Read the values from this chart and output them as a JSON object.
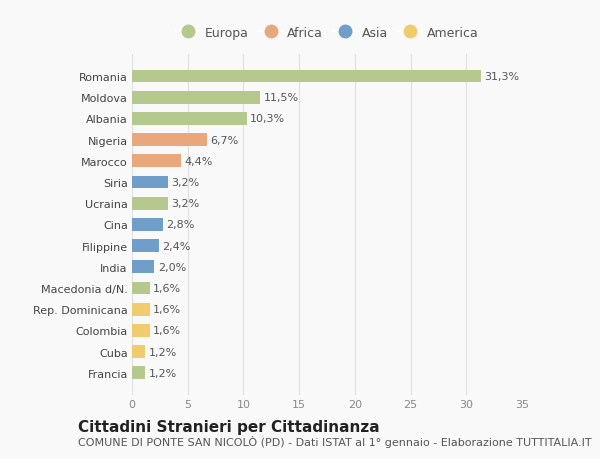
{
  "countries": [
    "Francia",
    "Cuba",
    "Colombia",
    "Rep. Dominicana",
    "Macedonia d/N.",
    "India",
    "Filippine",
    "Cina",
    "Ucraina",
    "Siria",
    "Marocco",
    "Nigeria",
    "Albania",
    "Moldova",
    "Romania"
  ],
  "values": [
    1.2,
    1.2,
    1.6,
    1.6,
    1.6,
    2.0,
    2.4,
    2.8,
    3.2,
    3.2,
    4.4,
    6.7,
    10.3,
    11.5,
    31.3
  ],
  "labels": [
    "1,2%",
    "1,2%",
    "1,6%",
    "1,6%",
    "1,6%",
    "2,0%",
    "2,4%",
    "2,8%",
    "3,2%",
    "3,2%",
    "4,4%",
    "6,7%",
    "10,3%",
    "11,5%",
    "31,3%"
  ],
  "continents": [
    "Europa",
    "America",
    "America",
    "America",
    "Europa",
    "Asia",
    "Asia",
    "Asia",
    "Europa",
    "Asia",
    "Africa",
    "Africa",
    "Europa",
    "Europa",
    "Europa"
  ],
  "continent_colors": {
    "Europa": "#b5c98e",
    "Africa": "#e8a87c",
    "Asia": "#6f9ec9",
    "America": "#f0cc6e"
  },
  "legend_order": [
    "Europa",
    "Africa",
    "Asia",
    "America"
  ],
  "xlim": [
    0,
    35
  ],
  "xticks": [
    0,
    5,
    10,
    15,
    20,
    25,
    30,
    35
  ],
  "title": "Cittadini Stranieri per Cittadinanza",
  "subtitle": "COMUNE DI PONTE SAN NICOLÒ (PD) - Dati ISTAT al 1° gennaio - Elaborazione TUTTITALIA.IT",
  "bg_color": "#f9f9f9",
  "grid_color": "#e0e0e0",
  "bar_height": 0.6,
  "title_fontsize": 11,
  "subtitle_fontsize": 8,
  "label_fontsize": 8,
  "tick_fontsize": 8,
  "legend_fontsize": 9
}
